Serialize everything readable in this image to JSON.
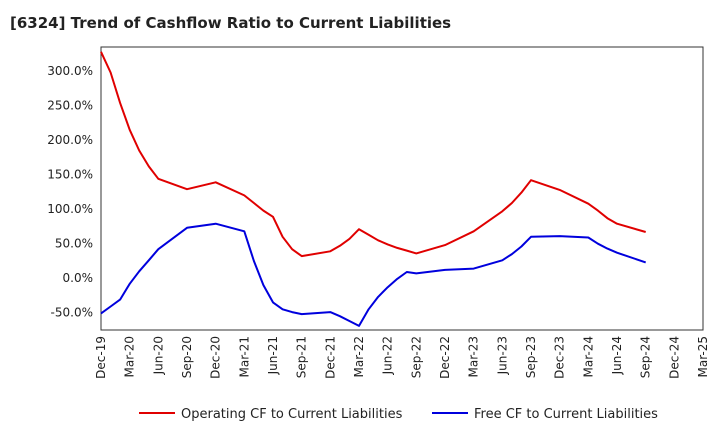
{
  "chart_data": {
    "type": "line",
    "title": "[6324]  Trend of Cashflow Ratio to Current Liabilities",
    "xlabel": "",
    "ylabel": "",
    "x_ticks": [
      "Dec-19",
      "Mar-20",
      "Jun-20",
      "Sep-20",
      "Dec-20",
      "Mar-21",
      "Jun-21",
      "Sep-21",
      "Dec-21",
      "Mar-22",
      "Jun-22",
      "Sep-22",
      "Dec-22",
      "Mar-23",
      "Jun-23",
      "Sep-23",
      "Dec-23",
      "Mar-24",
      "Jun-24",
      "Sep-24",
      "Dec-24",
      "Mar-25"
    ],
    "y_ticks": [
      "300.0%",
      "250.0%",
      "200.0%",
      "150.0%",
      "100.0%",
      "50.0%",
      "0.0%",
      "-50.0%"
    ],
    "y_tick_values": [
      300,
      250,
      200,
      150,
      100,
      50,
      0,
      -50
    ],
    "ylim": [
      -75,
      335
    ],
    "grid": true,
    "legend_position": "bottom",
    "x": [
      "Dec-19",
      "Jan-20",
      "Feb-20",
      "Mar-20",
      "Apr-20",
      "May-20",
      "Jun-20",
      "Sep-20",
      "Dec-20",
      "Mar-21",
      "Apr-21",
      "May-21",
      "Jun-21",
      "Jul-21",
      "Aug-21",
      "Sep-21",
      "Dec-21",
      "Jan-22",
      "Feb-22",
      "Mar-22",
      "Apr-22",
      "May-22",
      "Jun-22",
      "Jul-22",
      "Aug-22",
      "Sep-22",
      "Dec-22",
      "Mar-23",
      "Jun-23",
      "Jul-23",
      "Aug-23",
      "Sep-23",
      "Dec-23",
      "Mar-24",
      "Apr-24",
      "May-24",
      "Jun-24",
      "Sep-24"
    ],
    "series": [
      {
        "name": "Operating CF to Current Liabilities",
        "color": "#e00000",
        "values": [
          328,
          298,
          254,
          215,
          185,
          162,
          144,
          129,
          139,
          120,
          109,
          98,
          89,
          60,
          42,
          32,
          39,
          47,
          57,
          71,
          63,
          55,
          49,
          44,
          40,
          36,
          48,
          68,
          97,
          109,
          124,
          142,
          128,
          108,
          98,
          87,
          79,
          67
        ]
      },
      {
        "name": "Free CF to Current Liabilities",
        "color": "#0000dd",
        "values": [
          -51,
          -41,
          -31,
          -8,
          10,
          26,
          42,
          73,
          79,
          68,
          25,
          -10,
          -35,
          -45,
          -49,
          -52,
          -49,
          -55,
          -62,
          -69,
          -45,
          -27,
          -13,
          -1,
          9,
          7,
          12,
          14,
          26,
          35,
          46,
          60,
          61,
          59,
          50,
          43,
          37,
          23
        ]
      }
    ]
  }
}
